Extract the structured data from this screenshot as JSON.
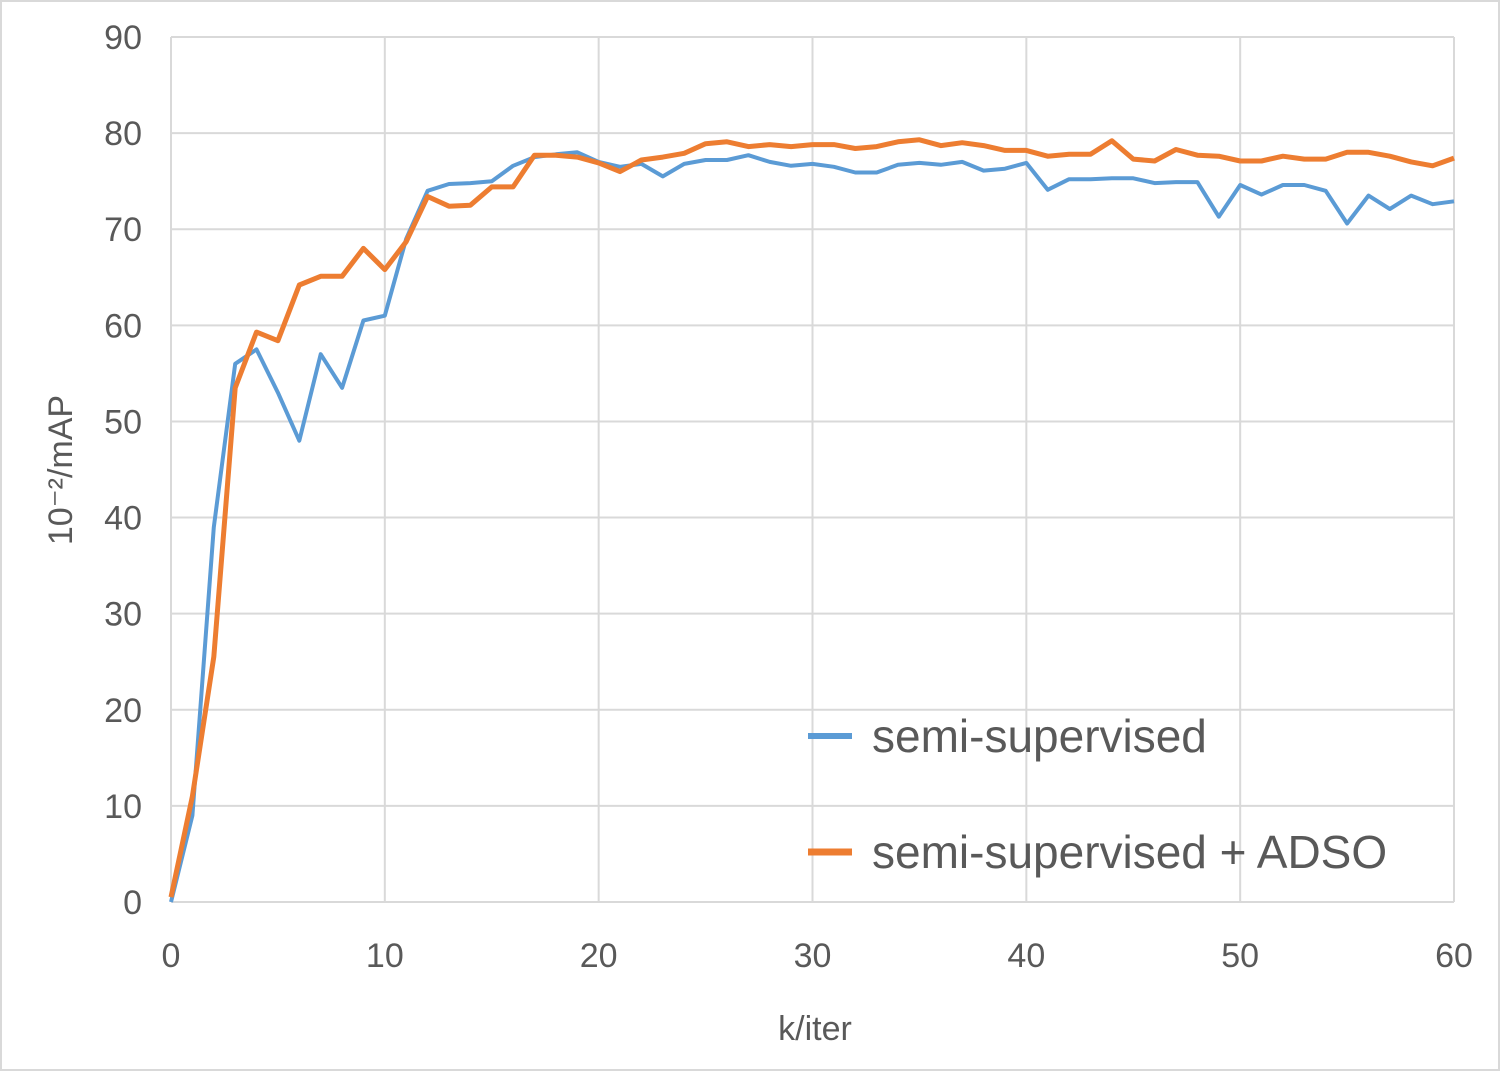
{
  "chart_data": {
    "type": "line",
    "title": "",
    "xlabel": "k/iter",
    "ylabel": "10⁻²/mAP",
    "xlim": [
      0,
      60
    ],
    "ylim": [
      0,
      90
    ],
    "x_ticks": [
      0,
      10,
      20,
      30,
      40,
      50,
      60
    ],
    "y_ticks": [
      0,
      10,
      20,
      30,
      40,
      50,
      60,
      70,
      80,
      90
    ],
    "grid": true,
    "legend_position": "bottom-right",
    "x": [
      0,
      1,
      2,
      3,
      4,
      5,
      6,
      7,
      8,
      9,
      10,
      11,
      12,
      13,
      14,
      15,
      16,
      17,
      18,
      19,
      20,
      21,
      22,
      23,
      24,
      25,
      26,
      27,
      28,
      29,
      30,
      31,
      32,
      33,
      34,
      35,
      36,
      37,
      38,
      39,
      40,
      41,
      42,
      43,
      44,
      45,
      46,
      47,
      48,
      49,
      50,
      51,
      52,
      53,
      54,
      55,
      56,
      57,
      58,
      59,
      60
    ],
    "series": [
      {
        "name": "semi-supervised",
        "color": "#5b9bd5",
        "values": [
          0,
          9,
          39,
          56,
          57.5,
          53,
          48,
          57,
          53.5,
          60.5,
          61,
          69,
          74,
          74.7,
          74.8,
          75,
          76.6,
          77.5,
          77.8,
          78,
          77,
          76.5,
          76.8,
          75.5,
          76.8,
          77.2,
          77.2,
          77.7,
          77,
          76.6,
          76.8,
          76.5,
          75.9,
          75.9,
          76.7,
          76.9,
          76.7,
          77,
          76.1,
          76.3,
          76.9,
          74.1,
          75.2,
          75.2,
          75.3,
          75.3,
          74.8,
          74.9,
          74.9,
          71.3,
          74.6,
          73.6,
          74.6,
          74.6,
          74,
          70.6,
          73.5,
          72.1,
          73.5,
          72.6,
          72.9
        ]
      },
      {
        "name": "semi-supervised + ADSO",
        "color": "#ed7d31",
        "values": [
          0.5,
          11,
          25.5,
          53.5,
          59.3,
          58.4,
          64.2,
          65.1,
          65.1,
          68,
          65.8,
          68.7,
          73.4,
          72.4,
          72.5,
          74.4,
          74.4,
          77.7,
          77.7,
          77.5,
          76.9,
          76,
          77.2,
          77.5,
          77.9,
          78.9,
          79.1,
          78.6,
          78.8,
          78.6,
          78.8,
          78.8,
          78.4,
          78.6,
          79.1,
          79.3,
          78.7,
          79,
          78.7,
          78.2,
          78.2,
          77.6,
          77.8,
          77.8,
          79.2,
          77.3,
          77.1,
          78.3,
          77.7,
          77.6,
          77.1,
          77.1,
          77.6,
          77.3,
          77.3,
          78,
          78,
          77.6,
          77,
          76.6,
          77.4
        ]
      }
    ]
  }
}
